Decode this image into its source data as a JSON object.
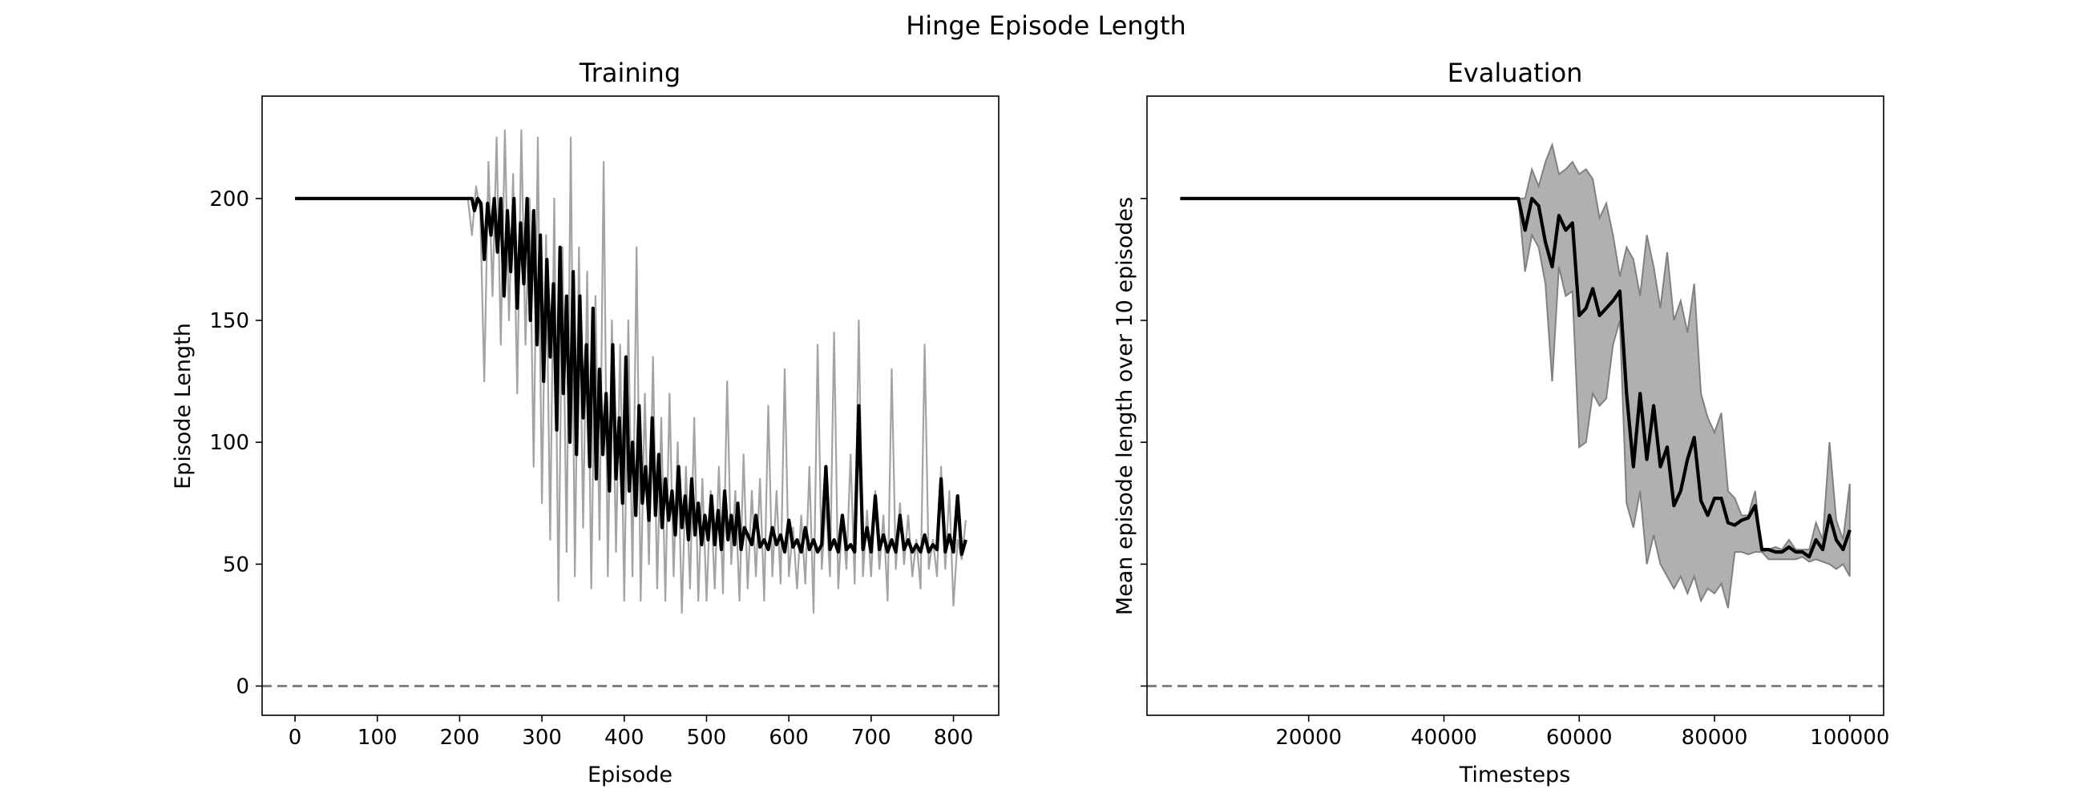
{
  "figure": {
    "title": "Hinge Episode Length"
  },
  "chart_data": [
    {
      "type": "line",
      "title": "Training",
      "xlabel": "Episode",
      "ylabel": "Episode Length",
      "xlim": [
        -40,
        855
      ],
      "ylim": [
        -12,
        242
      ],
      "xticks": [
        0,
        100,
        200,
        300,
        400,
        500,
        600,
        700,
        800
      ],
      "yticks": [
        0,
        50,
        100,
        150,
        200
      ],
      "grid": false,
      "reference_line": {
        "y": 0,
        "style": "dashed",
        "color": "#808080"
      },
      "series": [
        {
          "role": "raw",
          "color": "#999999",
          "x": [
            0,
            210,
            215,
            220,
            225,
            230,
            235,
            240,
            245,
            250,
            255,
            260,
            265,
            270,
            275,
            280,
            285,
            290,
            295,
            300,
            305,
            310,
            315,
            320,
            325,
            330,
            335,
            340,
            345,
            350,
            355,
            360,
            365,
            370,
            375,
            380,
            385,
            390,
            395,
            400,
            405,
            410,
            415,
            420,
            425,
            430,
            435,
            440,
            445,
            450,
            455,
            460,
            465,
            470,
            475,
            480,
            485,
            490,
            495,
            500,
            505,
            510,
            515,
            520,
            525,
            530,
            535,
            540,
            545,
            550,
            555,
            560,
            565,
            570,
            575,
            580,
            585,
            590,
            595,
            600,
            605,
            610,
            615,
            620,
            625,
            630,
            635,
            640,
            645,
            650,
            655,
            660,
            665,
            670,
            675,
            680,
            685,
            690,
            695,
            700,
            705,
            710,
            715,
            720,
            725,
            730,
            735,
            740,
            745,
            750,
            755,
            760,
            765,
            770,
            775,
            780,
            785,
            790,
            795,
            800,
            805,
            810,
            815
          ],
          "y": [
            200,
            200,
            185,
            205,
            195,
            125,
            215,
            160,
            225,
            140,
            228,
            150,
            210,
            120,
            228,
            140,
            200,
            90,
            225,
            75,
            185,
            60,
            200,
            35,
            180,
            55,
            225,
            45,
            180,
            65,
            170,
            40,
            160,
            60,
            215,
            45,
            150,
            55,
            140,
            35,
            150,
            45,
            180,
            35,
            120,
            50,
            135,
            40,
            110,
            35,
            120,
            45,
            100,
            30,
            90,
            40,
            110,
            35,
            85,
            35,
            80,
            40,
            90,
            38,
            125,
            50,
            80,
            35,
            95,
            40,
            80,
            45,
            85,
            35,
            115,
            45,
            80,
            42,
            130,
            45,
            65,
            40,
            70,
            42,
            90,
            30,
            140,
            48,
            75,
            45,
            145,
            40,
            70,
            48,
            95,
            42,
            150,
            45,
            72,
            45,
            80,
            48,
            70,
            35,
            130,
            48,
            75,
            50,
            70,
            45,
            60,
            40,
            140,
            48,
            60,
            45,
            90,
            48,
            80,
            33,
            60,
            52,
            68
          ]
        },
        {
          "role": "smoothed",
          "color": "#000000",
          "x": [
            0,
            215,
            218,
            222,
            226,
            230,
            234,
            238,
            242,
            246,
            250,
            254,
            258,
            262,
            266,
            270,
            274,
            278,
            282,
            286,
            290,
            294,
            298,
            302,
            306,
            310,
            314,
            318,
            322,
            326,
            330,
            334,
            338,
            342,
            346,
            350,
            354,
            358,
            362,
            366,
            370,
            374,
            378,
            382,
            386,
            390,
            394,
            398,
            402,
            406,
            410,
            414,
            418,
            422,
            426,
            430,
            434,
            438,
            442,
            446,
            450,
            454,
            458,
            462,
            466,
            470,
            474,
            478,
            482,
            486,
            490,
            494,
            498,
            502,
            506,
            510,
            514,
            518,
            522,
            526,
            530,
            534,
            538,
            542,
            546,
            550,
            555,
            560,
            565,
            570,
            575,
            580,
            585,
            590,
            595,
            600,
            605,
            610,
            615,
            620,
            625,
            630,
            635,
            640,
            645,
            650,
            655,
            660,
            665,
            670,
            675,
            680,
            685,
            690,
            695,
            700,
            705,
            710,
            715,
            720,
            725,
            730,
            735,
            740,
            745,
            750,
            755,
            760,
            765,
            770,
            775,
            780,
            785,
            790,
            795,
            800,
            805,
            810,
            815
          ],
          "y": [
            200,
            200,
            195,
            200,
            198,
            175,
            198,
            185,
            200,
            178,
            200,
            160,
            195,
            170,
            200,
            155,
            190,
            165,
            200,
            150,
            195,
            140,
            185,
            125,
            175,
            135,
            165,
            105,
            180,
            120,
            160,
            100,
            170,
            95,
            160,
            110,
            140,
            90,
            155,
            85,
            130,
            95,
            120,
            80,
            140,
            85,
            110,
            75,
            135,
            80,
            100,
            70,
            115,
            75,
            90,
            68,
            110,
            70,
            95,
            65,
            85,
            68,
            80,
            62,
            90,
            65,
            78,
            60,
            85,
            62,
            75,
            58,
            70,
            60,
            78,
            58,
            72,
            56,
            80,
            60,
            70,
            58,
            75,
            56,
            65,
            62,
            58,
            70,
            57,
            60,
            56,
            65,
            58,
            62,
            55,
            68,
            57,
            60,
            55,
            65,
            56,
            60,
            55,
            58,
            90,
            56,
            60,
            55,
            70,
            56,
            58,
            55,
            115,
            56,
            65,
            55,
            78,
            56,
            62,
            55,
            60,
            55,
            70,
            56,
            60,
            55,
            58,
            55,
            62,
            55,
            58,
            56,
            85,
            55,
            62,
            55,
            78,
            54,
            60
          ]
        }
      ]
    },
    {
      "type": "line",
      "title": "Evaluation",
      "xlabel": "Timesteps",
      "ylabel": "Mean episode length over 10 episodes",
      "xlim": [
        -3900,
        105000
      ],
      "ylim": [
        -12,
        242
      ],
      "xticks": [
        20000,
        40000,
        60000,
        80000,
        100000
      ],
      "yticks": [
        0,
        50,
        100,
        150,
        200
      ],
      "ytick_labels_shown": false,
      "grid": false,
      "reference_line": {
        "y": 0,
        "style": "dashed",
        "color": "#808080"
      },
      "band_color": "#b0b0b0",
      "band_edge_color": "#808080",
      "series": [
        {
          "role": "mean",
          "color": "#000000",
          "x": [
            1000,
            51000,
            52000,
            53000,
            54000,
            55000,
            56000,
            57000,
            58000,
            59000,
            60000,
            61000,
            62000,
            63000,
            64000,
            65000,
            66000,
            67000,
            68000,
            69000,
            70000,
            71000,
            72000,
            73000,
            74000,
            75000,
            76000,
            77000,
            78000,
            79000,
            80000,
            81000,
            82000,
            83000,
            84000,
            85000,
            86000,
            87000,
            88000,
            89000,
            90000,
            91000,
            92000,
            93000,
            94000,
            95000,
            96000,
            97000,
            98000,
            99000,
            100000
          ],
          "y": [
            200,
            200,
            187,
            200,
            197,
            182,
            172,
            193,
            187,
            190,
            152,
            155,
            163,
            152,
            155,
            158,
            162,
            120,
            90,
            120,
            93,
            115,
            90,
            98,
            74,
            80,
            93,
            102,
            76,
            70,
            77,
            77,
            67,
            66,
            68,
            69,
            74,
            56,
            56,
            55,
            55,
            57,
            55,
            55,
            53,
            60,
            56,
            70,
            60,
            56,
            64
          ]
        }
      ],
      "band": {
        "x": [
          1000,
          51000,
          52000,
          53000,
          54000,
          55000,
          56000,
          57000,
          58000,
          59000,
          60000,
          61000,
          62000,
          63000,
          64000,
          65000,
          66000,
          67000,
          68000,
          69000,
          70000,
          71000,
          72000,
          73000,
          74000,
          75000,
          76000,
          77000,
          78000,
          79000,
          80000,
          81000,
          82000,
          83000,
          84000,
          85000,
          86000,
          87000,
          88000,
          89000,
          90000,
          91000,
          92000,
          93000,
          94000,
          95000,
          96000,
          97000,
          98000,
          99000,
          100000
        ],
        "upper": [
          200,
          200,
          200,
          212,
          205,
          215,
          222,
          210,
          212,
          215,
          210,
          212,
          208,
          192,
          198,
          185,
          168,
          180,
          175,
          160,
          185,
          172,
          155,
          178,
          150,
          158,
          145,
          165,
          120,
          110,
          104,
          112,
          80,
          77,
          70,
          70,
          80,
          55,
          56,
          57,
          56,
          60,
          56,
          56,
          56,
          67,
          60,
          100,
          68,
          60,
          83
        ],
        "lower": [
          200,
          200,
          170,
          185,
          180,
          165,
          125,
          172,
          160,
          162,
          98,
          100,
          120,
          115,
          118,
          140,
          150,
          75,
          65,
          80,
          50,
          62,
          50,
          45,
          40,
          45,
          38,
          45,
          35,
          40,
          38,
          42,
          32,
          55,
          55,
          54,
          55,
          55,
          52,
          52,
          52,
          52,
          52,
          53,
          51,
          52,
          51,
          50,
          48,
          50,
          45
        ]
      }
    }
  ]
}
